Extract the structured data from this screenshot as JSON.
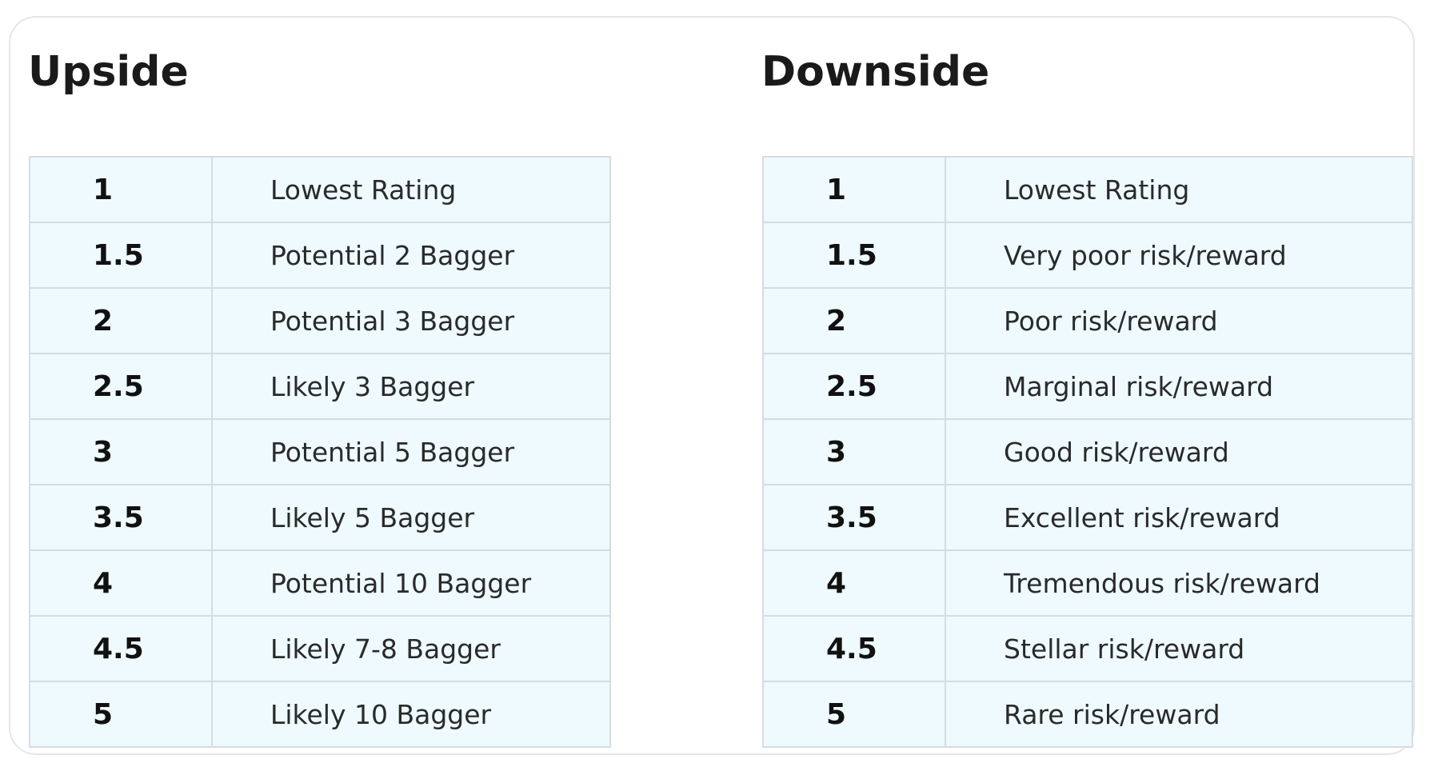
{
  "upside": {
    "title": "Upside",
    "rows": [
      [
        "1",
        "Lowest Rating"
      ],
      [
        "1.5",
        "Potential 2 Bagger"
      ],
      [
        "2",
        "Potential 3 Bagger"
      ],
      [
        "2.5",
        "Likely 3 Bagger"
      ],
      [
        "3",
        "Potential 5 Bagger"
      ],
      [
        "3.5",
        "Likely 5 Bagger"
      ],
      [
        "4",
        "Potential 10 Bagger"
      ],
      [
        "4.5",
        "Likely 7-8 Bagger"
      ],
      [
        "5",
        "Likely 10 Bagger"
      ]
    ]
  },
  "downside": {
    "title": "Downside",
    "rows": [
      [
        "1",
        "Lowest Rating"
      ],
      [
        "1.5",
        "Very poor risk/reward"
      ],
      [
        "2",
        "Poor risk/reward"
      ],
      [
        "2.5",
        "Marginal risk/reward"
      ],
      [
        "3",
        "Good risk/reward"
      ],
      [
        "3.5",
        "Excellent risk/reward"
      ],
      [
        "4",
        "Tremendous risk/reward"
      ],
      [
        "4.5",
        "Stellar risk/reward"
      ],
      [
        "5",
        "Rare risk/reward"
      ]
    ]
  }
}
